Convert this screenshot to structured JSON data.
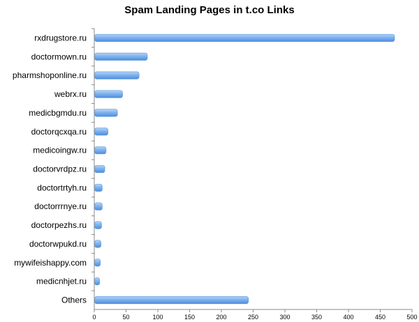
{
  "chart_data": {
    "type": "bar",
    "orientation": "horizontal",
    "title": "Spam Landing Pages in t.co Links",
    "xlabel": "",
    "ylabel": "",
    "xlim": [
      0,
      500
    ],
    "x_ticks": [
      0,
      50,
      100,
      150,
      200,
      250,
      300,
      350,
      400,
      450,
      500
    ],
    "grid": false,
    "legend": "none",
    "bar_color": "#6fa8e8",
    "categories": [
      "rxdrugstore.ru",
      "doctormown.ru",
      "pharmshoponline.ru",
      "webrx.ru",
      "medicbgmdu.ru",
      "doctorqcxqa.ru",
      "medicoingw.ru",
      "doctorvrdpz.ru",
      "doctortrtyh.ru",
      "doctorrrnye.ru",
      "doctorpezhs.ru",
      "doctorwpukd.ru",
      "mywifeishappy.com",
      "medicnhjet.ru",
      "Others"
    ],
    "values": [
      472,
      83,
      70,
      44,
      36,
      21,
      18,
      16,
      12,
      12,
      11,
      10,
      9,
      8,
      242
    ]
  }
}
